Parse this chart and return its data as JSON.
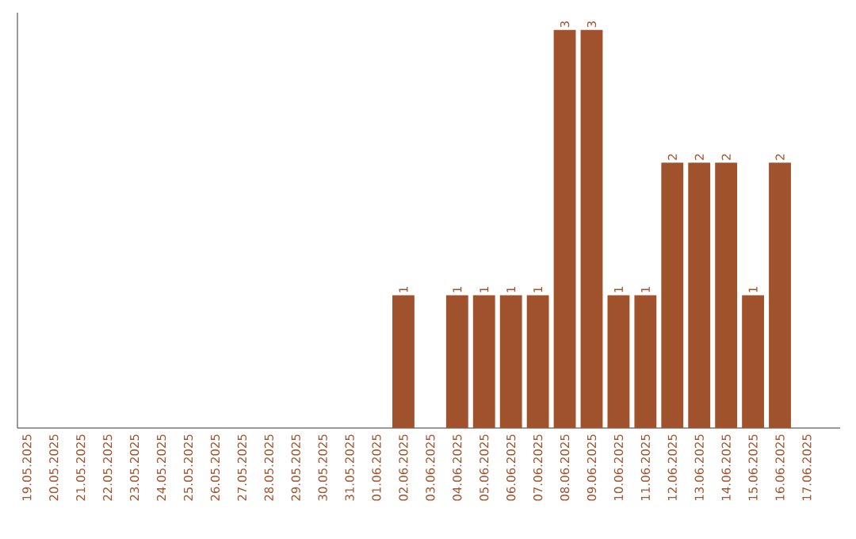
{
  "chart_data": {
    "type": "bar",
    "categories": [
      "19.05.2025",
      "20.05.2025",
      "21.05.2025",
      "22.05.2025",
      "23.05.2025",
      "24.05.2025",
      "25.05.2025",
      "26.05.2025",
      "27.05.2025",
      "28.05.2025",
      "29.05.2025",
      "30.05.2025",
      "31.05.2025",
      "01.06.2025",
      "02.06.2025",
      "03.06.2025",
      "04.06.2025",
      "05.06.2025",
      "06.06.2025",
      "07.06.2025",
      "08.06.2025",
      "09.06.2025",
      "10.06.2025",
      "11.06.2025",
      "12.06.2025",
      "13.06.2025",
      "14.06.2025",
      "15.06.2025",
      "16.06.2025",
      "17.06.2025"
    ],
    "values": [
      null,
      null,
      null,
      null,
      null,
      null,
      null,
      null,
      null,
      null,
      null,
      null,
      null,
      null,
      1,
      null,
      1,
      1,
      1,
      1,
      3,
      3,
      1,
      1,
      2,
      2,
      2,
      1,
      2,
      null
    ],
    "data_labels": true,
    "color": "#a0522d",
    "ylim": [
      0,
      3.13
    ],
    "tick_labels": "x"
  }
}
